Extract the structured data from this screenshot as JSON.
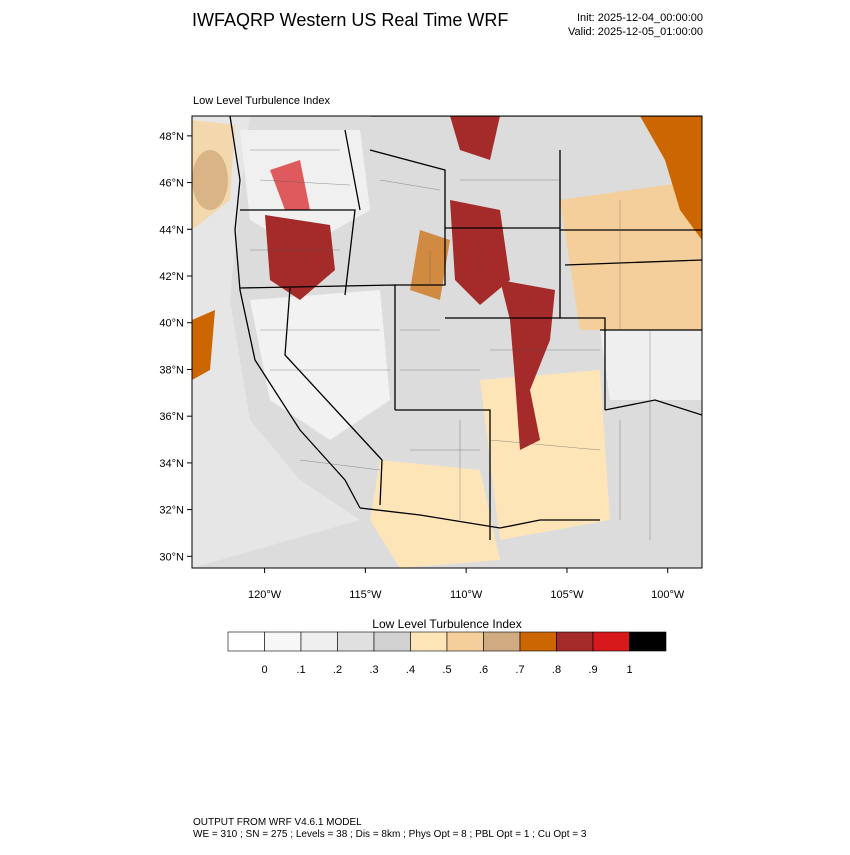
{
  "chart_data": {
    "type": "map",
    "title": "IWFAQRP Western US Real Time WRF",
    "init": "Init: 2025-12-04_00:00:00",
    "valid": "Valid: 2025-12-05_01:00:00",
    "subtitle": "Low Level Turbulence Index",
    "xlim": [
      -123.6,
      -98.3
    ],
    "ylim": [
      29.5,
      48.85
    ],
    "xticks": [
      {
        "value": -120,
        "label": "120°W"
      },
      {
        "value": -115,
        "label": "115°W"
      },
      {
        "value": -110,
        "label": "110°W"
      },
      {
        "value": -105,
        "label": "105°W"
      },
      {
        "value": -100,
        "label": "100°W"
      }
    ],
    "yticks": [
      {
        "value": 30,
        "label": "30°N"
      },
      {
        "value": 32,
        "label": "32°N"
      },
      {
        "value": 34,
        "label": "34°N"
      },
      {
        "value": 36,
        "label": "36°N"
      },
      {
        "value": 38,
        "label": "38°N"
      },
      {
        "value": 40,
        "label": "40°N"
      },
      {
        "value": 42,
        "label": "42°N"
      },
      {
        "value": 44,
        "label": "44°N"
      },
      {
        "value": 46,
        "label": "46°N"
      },
      {
        "value": 48,
        "label": "48°N"
      }
    ],
    "colorbar": {
      "title": "Low Level Turbulence Index",
      "colors": [
        "#ffffff",
        "#f7f7f7",
        "#efefef",
        "#e0e0e0",
        "#d2d2d2",
        "#fde5b8",
        "#f5cf9b",
        "#d0aa80",
        "#cc6600",
        "#a52a2a",
        "#d7191c",
        "#000000"
      ],
      "ticks": [
        0,
        {
          "value": 0.1,
          "label": ".1"
        },
        {
          "value": 0.2,
          "label": ".2"
        },
        {
          "value": 0.3,
          "label": ".3"
        },
        {
          "value": 0.4,
          "label": ".4"
        },
        {
          "value": 0.5,
          "label": ".5"
        },
        {
          "value": 0.6,
          "label": ".6"
        },
        {
          "value": 0.7,
          "label": ".7"
        },
        {
          "value": 0.8,
          "label": ".8"
        },
        {
          "value": 0.9,
          "label": ".9"
        },
        1
      ]
    },
    "footer": [
      "OUTPUT FROM WRF V4.6.1 MODEL",
      "WE = 310 ; SN = 275 ; Levels = 38 ; Dis = 8km ; Phys Opt = 8 ; PBL Opt = 1 ; Cu Opt = 3"
    ]
  }
}
